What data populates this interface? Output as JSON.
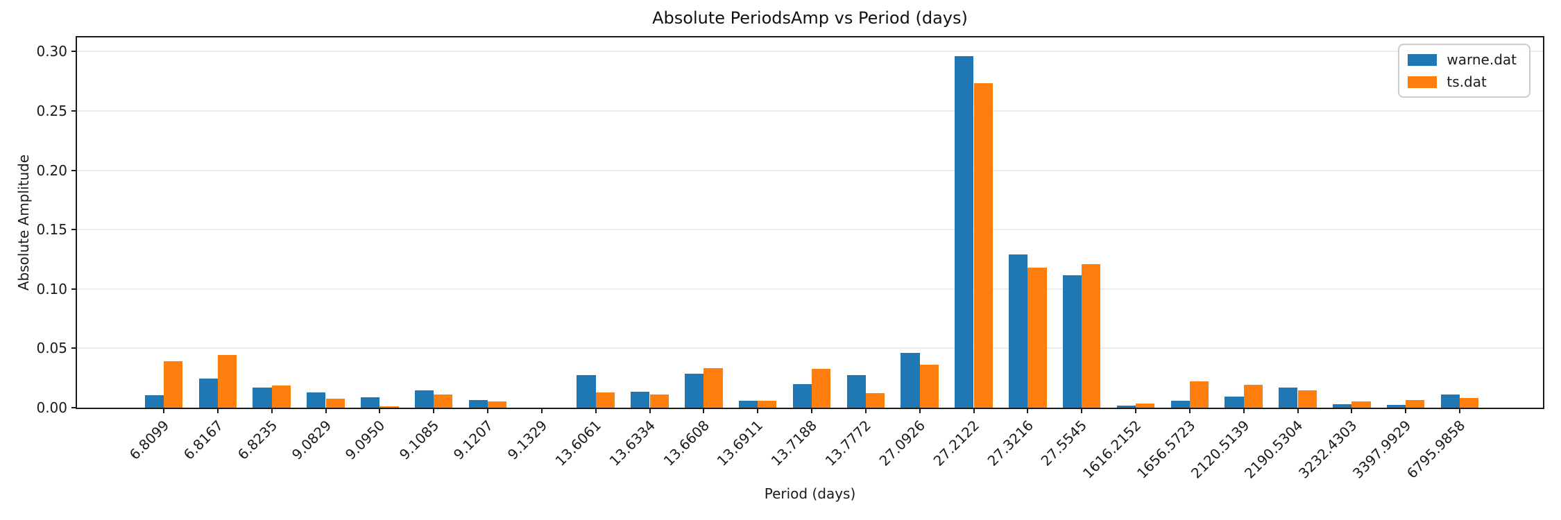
{
  "chart_data": {
    "type": "bar",
    "title": "Absolute PeriodsAmp vs Period (days)",
    "xlabel": "Period (days)",
    "ylabel": "Absolute Amplitude",
    "ylim": [
      0,
      0.312
    ],
    "yticks": [
      "0.00",
      "0.05",
      "0.10",
      "0.15",
      "0.20",
      "0.25",
      "0.30"
    ],
    "grid": "horizontal",
    "legend_position": "upper-right",
    "categories": [
      "6.8099",
      "6.8167",
      "6.8235",
      "9.0829",
      "9.0950",
      "9.1085",
      "9.1207",
      "9.1329",
      "13.6061",
      "13.6334",
      "13.6608",
      "13.6911",
      "13.7188",
      "13.7772",
      "27.0926",
      "27.2122",
      "27.3216",
      "27.5545",
      "1616.2152",
      "1656.5723",
      "2120.5139",
      "2190.5304",
      "3232.4303",
      "3397.9929",
      "6795.9858"
    ],
    "series": [
      {
        "name": "warne.dat",
        "color": "#1f77b4",
        "values": [
          0.0105,
          0.0248,
          0.0172,
          0.0131,
          0.009,
          0.0146,
          0.0063,
          0.0002,
          0.0272,
          0.0132,
          0.0285,
          0.0056,
          0.0199,
          0.0273,
          0.0462,
          0.2963,
          0.1288,
          0.1113,
          0.0019,
          0.0056,
          0.0095,
          0.0167,
          0.0027,
          0.0021,
          0.0111
        ]
      },
      {
        "name": "ts.dat",
        "color": "#ff7f0e",
        "values": [
          0.0394,
          0.0446,
          0.0188,
          0.0075,
          0.0014,
          0.0113,
          0.0055,
          0.0001,
          0.0126,
          0.011,
          0.0331,
          0.0058,
          0.0329,
          0.012,
          0.0363,
          0.2734,
          0.1177,
          0.121,
          0.0035,
          0.0223,
          0.0192,
          0.0147,
          0.005,
          0.0066,
          0.0082
        ]
      }
    ]
  }
}
